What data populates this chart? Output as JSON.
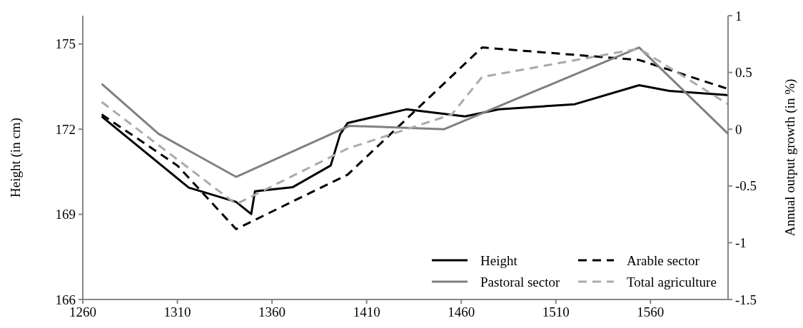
{
  "chart_data": {
    "type": "line",
    "ylabel": "Height (in cm)",
    "y2label": "Annual output growth (in %)",
    "xlim": [
      1260,
      1601
    ],
    "xticks": [
      1260,
      1310,
      1360,
      1410,
      1460,
      1510,
      1560
    ],
    "ylim": [
      166,
      176
    ],
    "yticks": [
      166,
      169,
      172,
      175
    ],
    "y2lim": [
      -1.5,
      1
    ],
    "y2ticks": [
      -1.5,
      -1,
      -0.5,
      0,
      0.5,
      1
    ],
    "grid": false,
    "legend": "bottom right",
    "marker": "none",
    "series": [
      {
        "name": "Height",
        "color": "#000000",
        "line_style": "solid",
        "x": [
          1270,
          1316,
          1341,
          1349,
          1351,
          1371,
          1391,
          1396,
          1400,
          1431,
          1462,
          1480,
          1520,
          1554,
          1570,
          1601
        ],
        "values": [
          172.45,
          169.94,
          169.44,
          169.01,
          169.81,
          169.96,
          170.72,
          171.82,
          172.22,
          172.7,
          172.45,
          172.7,
          172.88,
          173.55,
          173.35,
          173.2
        ]
      },
      {
        "name": "Arable sector",
        "color": "#000000",
        "line_style": "dashed",
        "axis": "y2",
        "x": [
          1270,
          1310,
          1341,
          1400,
          1471,
          1554,
          1600
        ],
        "values": [
          0.13,
          -0.32,
          -0.88,
          -0.4,
          0.72,
          0.61,
          0.36
        ]
      },
      {
        "name": "Pastoral sector",
        "color": "#808080",
        "line_style": "solid",
        "axis": "y2",
        "x": [
          1270,
          1300,
          1341,
          1401,
          1451,
          1554,
          1601
        ],
        "values": [
          0.4,
          -0.04,
          -0.42,
          0.03,
          0,
          0.72,
          -0.04
        ]
      },
      {
        "name": "Total agriculture",
        "color": "#aaaaaa",
        "line_style": "dashed",
        "axis": "y2",
        "x": [
          1270,
          1341,
          1400,
          1455,
          1471,
          1554,
          1601
        ],
        "values": [
          0.24,
          -0.66,
          -0.17,
          0.13,
          0.46,
          0.71,
          0.22
        ]
      }
    ]
  }
}
